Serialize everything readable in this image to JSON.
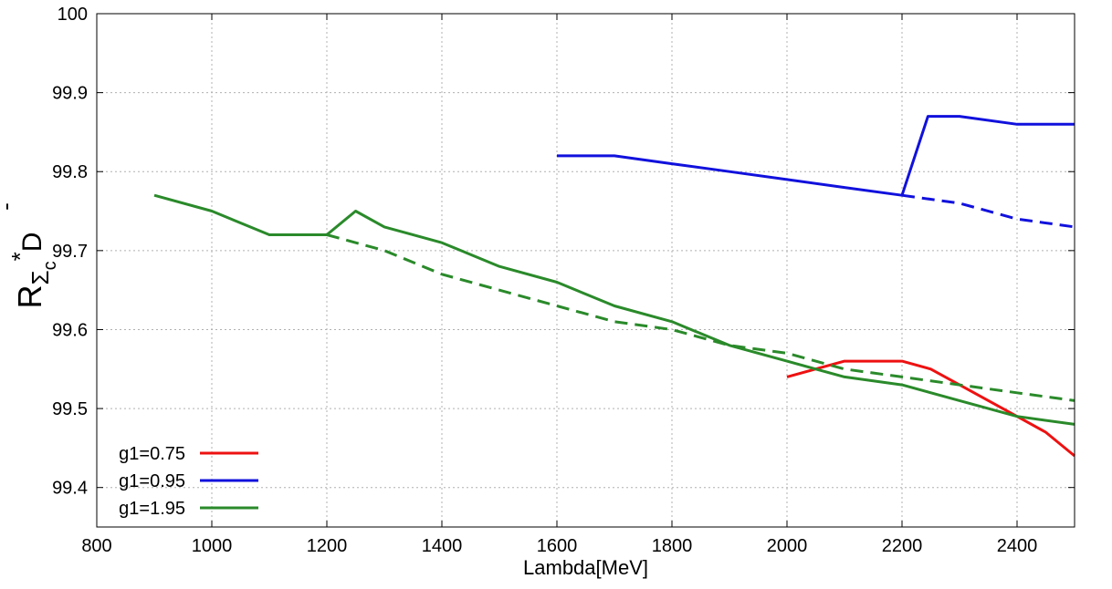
{
  "chart_data": {
    "type": "line",
    "title": "",
    "xlabel": "Lambda[MeV]",
    "ylabel": {
      "base": "R",
      "sub1": "Σ",
      "sub2": "c",
      "sup": "*",
      "tail": "D",
      "tail_mark": "-"
    },
    "xlim": [
      800,
      2500
    ],
    "ylim": [
      99.35,
      100
    ],
    "xticks": [
      800,
      1000,
      1200,
      1400,
      1600,
      1800,
      2000,
      2200,
      2400
    ],
    "yticks": [
      99.4,
      99.5,
      99.6,
      99.7,
      99.8,
      99.9,
      100
    ],
    "ytick_labels": [
      "99.4",
      "99.5",
      "99.6",
      "99.7",
      "99.8",
      "99.9",
      "100"
    ],
    "grid": true,
    "legend_position": "bottom-left",
    "series": [
      {
        "name": "g1=0.75",
        "color": "#ee1111",
        "style": "solid",
        "x": [
          2000,
          2100,
          2200,
          2250,
          2300,
          2400,
          2450,
          2500
        ],
        "y": [
          99.54,
          99.56,
          99.56,
          99.55,
          99.53,
          99.49,
          99.47,
          99.44
        ]
      },
      {
        "name": "g1=0.95",
        "color": "#1111dd",
        "style": "solid",
        "x": [
          1600,
          1700,
          1800,
          1900,
          2000,
          2100,
          2200,
          2245,
          2300,
          2400,
          2500
        ],
        "y": [
          99.82,
          99.82,
          99.81,
          99.8,
          99.79,
          99.78,
          99.77,
          99.87,
          99.87,
          99.86,
          99.86
        ]
      },
      {
        "name": "",
        "color": "#1111dd",
        "style": "dashed",
        "x": [
          2200,
          2300,
          2400,
          2500
        ],
        "y": [
          99.77,
          99.76,
          99.74,
          99.73
        ]
      },
      {
        "name": "g1=1.95",
        "color": "#2a8a2a",
        "style": "solid",
        "x": [
          900,
          1000,
          1100,
          1200,
          1250,
          1300,
          1400,
          1500,
          1600,
          1700,
          1800,
          1900,
          2000,
          2100,
          2200,
          2300,
          2400,
          2500
        ],
        "y": [
          99.77,
          99.75,
          99.72,
          99.72,
          99.75,
          99.73,
          99.71,
          99.68,
          99.66,
          99.63,
          99.61,
          99.58,
          99.56,
          99.54,
          99.53,
          99.51,
          99.49,
          99.48
        ]
      },
      {
        "name": "",
        "color": "#2a8a2a",
        "style": "dashed",
        "x": [
          1200,
          1300,
          1400,
          1500,
          1600,
          1700,
          1800,
          1900,
          2000,
          2100,
          2200,
          2300,
          2400,
          2500
        ],
        "y": [
          99.72,
          99.7,
          99.67,
          99.65,
          99.63,
          99.61,
          99.6,
          99.58,
          99.57,
          99.55,
          99.54,
          99.53,
          99.52,
          99.51
        ]
      }
    ]
  }
}
